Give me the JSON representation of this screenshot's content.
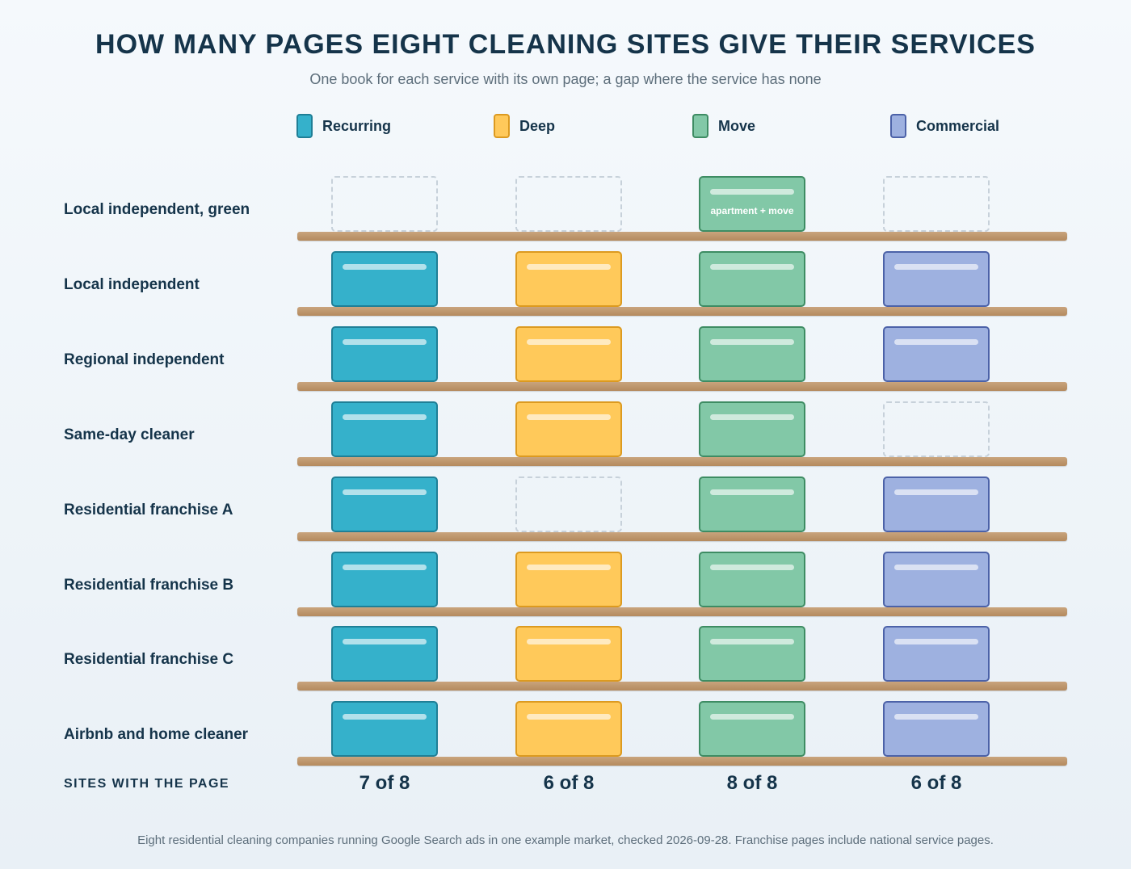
{
  "title": "HOW MANY PAGES EIGHT CLEANING SITES GIVE THEIR SERVICES",
  "subtitle": "One book for each service with its own page; a gap where the service has none",
  "legend": [
    {
      "name": "Recurring",
      "color": "#35b1cb",
      "border": "#1f7f96"
    },
    {
      "name": "Deep",
      "color": "#ffc95a",
      "border": "#dc9a20"
    },
    {
      "name": "Move",
      "color": "#82c8a7",
      "border": "#3e8c63"
    },
    {
      "name": "Commercial",
      "color": "#9eb1e0",
      "border": "#4c62a8"
    }
  ],
  "footer_label": "SITES WITH THE PAGE",
  "note": "Eight residential cleaning companies running Google Search ads in one example market, checked 2026-09-28. Franchise pages include national service pages.",
  "chart_data": {
    "type": "table",
    "title": "HOW MANY PAGES EIGHT CLEANING SITES GIVE THEIR SERVICES",
    "columns": [
      "Recurring",
      "Deep",
      "Move",
      "Commercial"
    ],
    "rows": [
      {
        "site": "Local independent, green",
        "pages": [
          0,
          0,
          1,
          0
        ],
        "book_labels": [
          "",
          "",
          "apartment + move",
          ""
        ]
      },
      {
        "site": "Local independent",
        "pages": [
          1,
          1,
          1,
          1
        ],
        "book_labels": [
          "",
          "",
          "",
          ""
        ]
      },
      {
        "site": "Regional independent",
        "pages": [
          1,
          1,
          1,
          1
        ],
        "book_labels": [
          "",
          "",
          "",
          ""
        ]
      },
      {
        "site": "Same-day cleaner",
        "pages": [
          1,
          1,
          1,
          0
        ],
        "book_labels": [
          "",
          "",
          "",
          ""
        ]
      },
      {
        "site": "Residential franchise A",
        "pages": [
          1,
          0,
          1,
          1
        ],
        "book_labels": [
          "",
          "",
          "",
          ""
        ]
      },
      {
        "site": "Residential franchise B",
        "pages": [
          1,
          1,
          1,
          1
        ],
        "book_labels": [
          "",
          "",
          "",
          ""
        ]
      },
      {
        "site": "Residential franchise C",
        "pages": [
          1,
          1,
          1,
          1
        ],
        "book_labels": [
          "",
          "",
          "",
          ""
        ]
      },
      {
        "site": "Airbnb and home cleaner",
        "pages": [
          1,
          1,
          1,
          1
        ],
        "book_labels": [
          "",
          "",
          "",
          ""
        ]
      }
    ],
    "totals": [
      "7 of 8",
      "6 of 8",
      "8 of 8",
      "6 of 8"
    ]
  }
}
